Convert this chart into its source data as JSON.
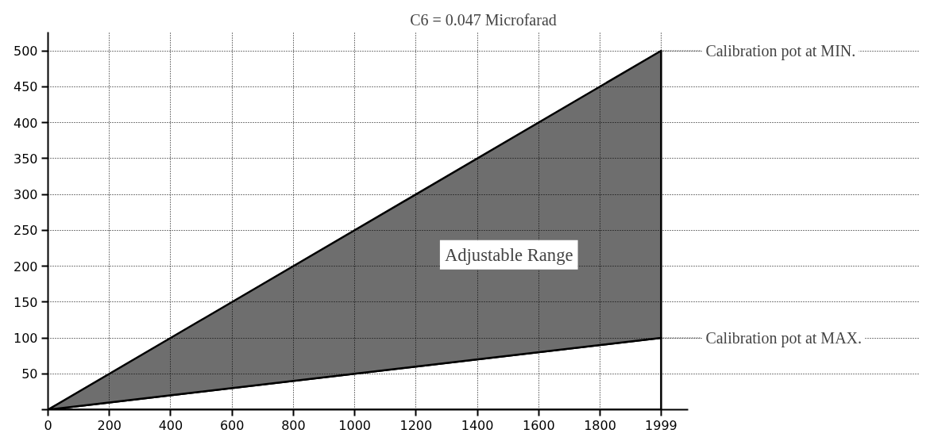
{
  "chart_data": {
    "type": "area",
    "title": "C6 = 0.047 Microfarad",
    "x": [
      0,
      1999
    ],
    "stacked": true,
    "series": [
      {
        "color": "#ffffff",
        "values": [
          0,
          100
        ]
      },
      {
        "color": "#6e6e6e",
        "values": [
          0,
          400
        ]
      }
    ],
    "xlim": [
      0,
      2087
    ],
    "ylim": [
      0,
      526
    ],
    "xticks": [
      0,
      200,
      400,
      600,
      800,
      1000,
      1200,
      1400,
      1600,
      1800,
      1999
    ],
    "yticks": [
      {
        "value": 0,
        "label": null
      },
      50,
      100,
      150,
      200,
      250,
      300,
      350,
      400,
      450,
      500
    ],
    "grid": true,
    "annotations": [
      {
        "text": "Calibration pot at MIN.",
        "x": 1999,
        "y": 500
      },
      {
        "text": "Calibration pot at MAX.",
        "x": 1999,
        "y": 100
      },
      "Adjustable Range"
    ]
  }
}
